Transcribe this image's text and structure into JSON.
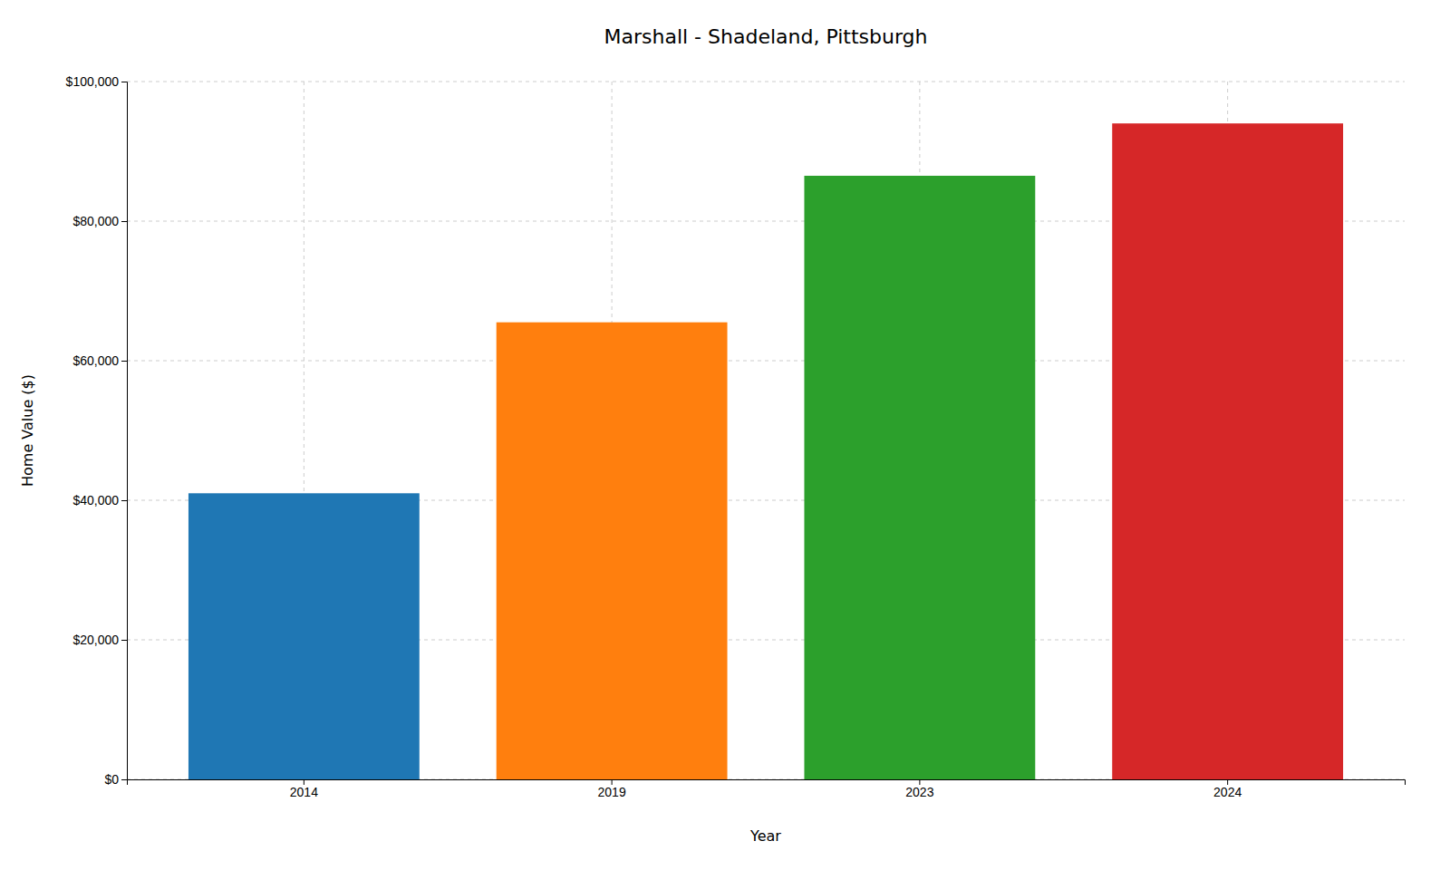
{
  "chart_data": {
    "type": "bar",
    "title": "Marshall - Shadeland, Pittsburgh",
    "xlabel": "Year",
    "ylabel": "Home Value ($)",
    "categories": [
      "2014",
      "2019",
      "2023",
      "2024"
    ],
    "values": [
      41000,
      65500,
      86500,
      94000
    ],
    "colors": [
      "#1f77b4",
      "#ff7f0e",
      "#2ca02c",
      "#d62728"
    ],
    "ylim": [
      0,
      100000
    ],
    "yticks": [
      {
        "value": 0,
        "label": "$0"
      },
      {
        "value": 20000,
        "label": "$20,000"
      },
      {
        "value": 40000,
        "label": "$40,000"
      },
      {
        "value": 60000,
        "label": "$60,000"
      },
      {
        "value": 80000,
        "label": "$80,000"
      },
      {
        "value": 100000,
        "label": "$100,000"
      }
    ],
    "grid": true
  }
}
